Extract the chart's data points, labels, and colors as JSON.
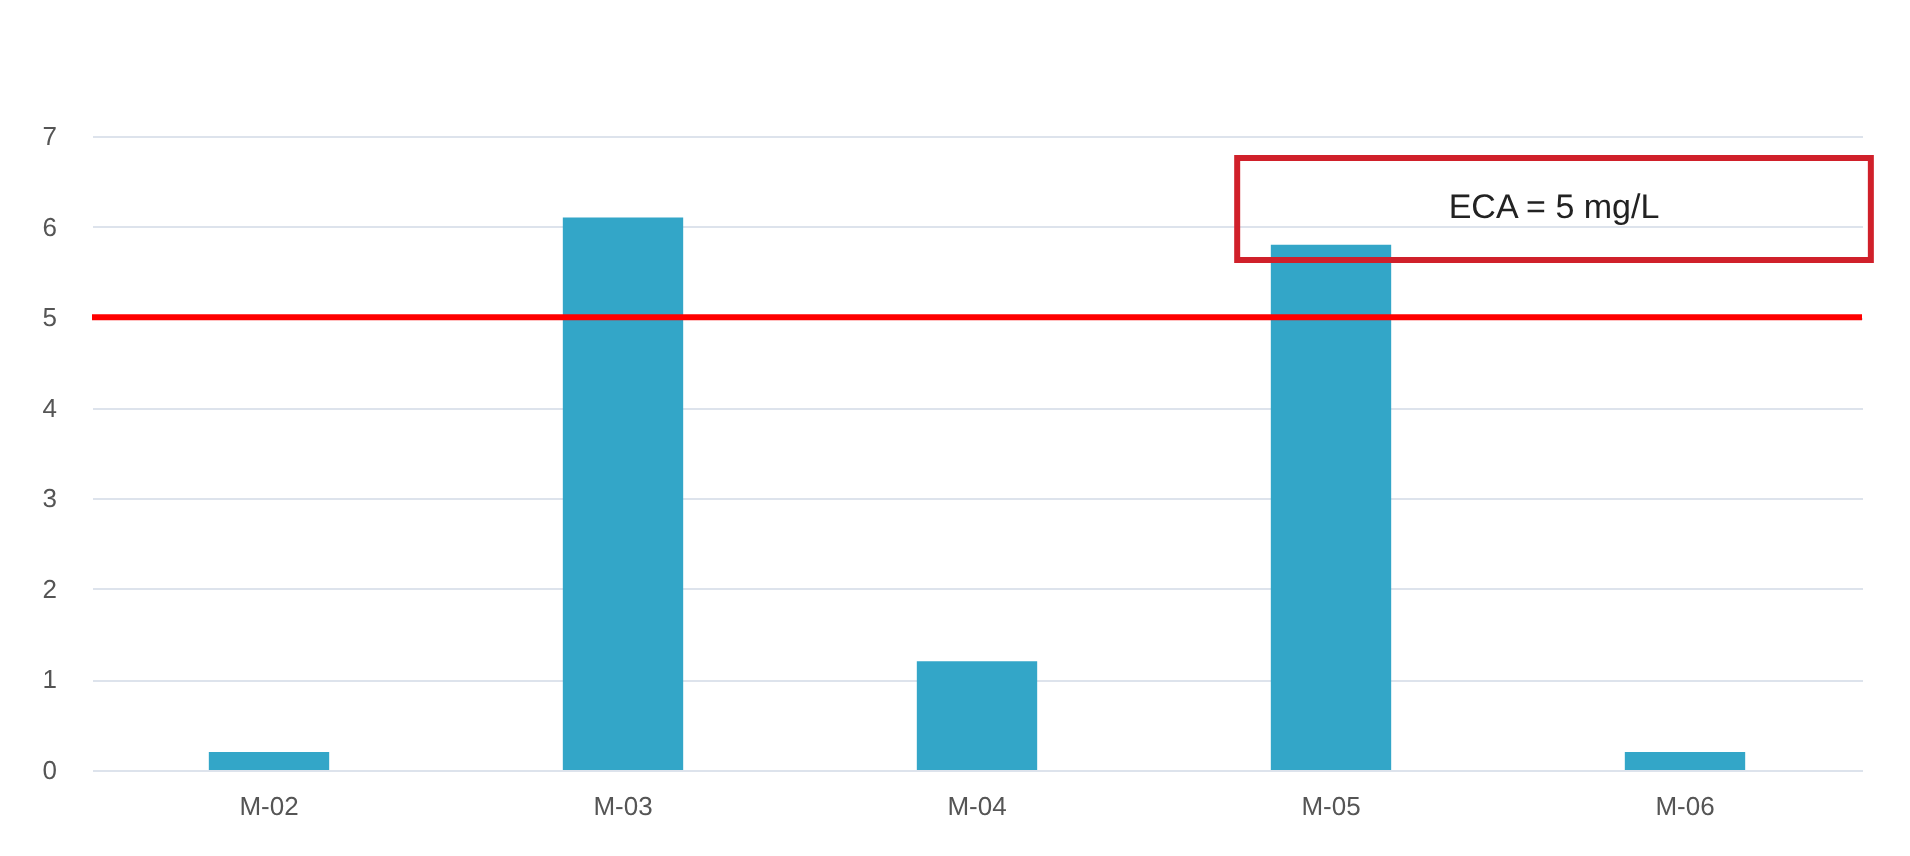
{
  "chart_data": {
    "type": "bar",
    "categories": [
      "M-02",
      "M-03",
      "M-04",
      "M-05",
      "M-06"
    ],
    "values": [
      0.2,
      6.1,
      1.2,
      5.8,
      0.2
    ],
    "color": "#33a6c8",
    "ylim": [
      0,
      7
    ],
    "yticks": [
      0,
      1,
      2,
      3,
      4,
      5,
      6,
      7
    ],
    "grid": "y",
    "ref_lines": [
      {
        "axis": "y",
        "value": 5,
        "label": "ECA = 5 mg/L",
        "color": "#ff0000"
      }
    ]
  }
}
